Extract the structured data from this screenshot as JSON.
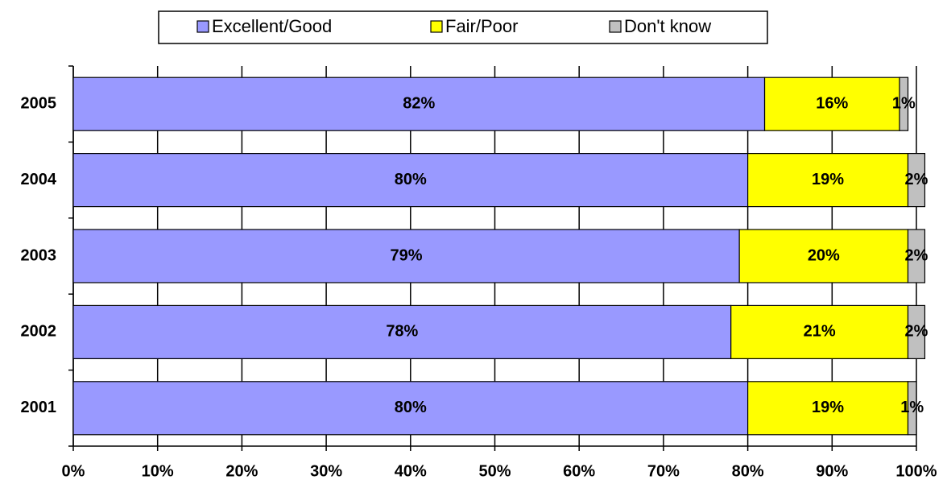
{
  "chart_data": {
    "type": "stacked_bar_horizontal",
    "categories": [
      "2005",
      "2004",
      "2003",
      "2002",
      "2001"
    ],
    "series": [
      {
        "name": "Excellent/Good",
        "color": "#9999ff",
        "values": [
          82,
          80,
          79,
          78,
          80
        ],
        "value_labels": [
          "82%",
          "80%",
          "79%",
          "78%",
          "80%"
        ]
      },
      {
        "name": "Fair/Poor",
        "color": "#ffff00",
        "values": [
          16,
          19,
          20,
          21,
          19
        ],
        "value_labels": [
          "16%",
          "19%",
          "20%",
          "21%",
          "19%"
        ]
      },
      {
        "name": "Don't know",
        "color": "#c0c0c0",
        "values": [
          1,
          2,
          2,
          2,
          1
        ],
        "value_labels": [
          "1%",
          "2%",
          "2%",
          "2%",
          "1%"
        ]
      }
    ],
    "xlim": [
      0,
      100
    ],
    "xticks": [
      {
        "value": 0,
        "label": "0%"
      },
      {
        "value": 10,
        "label": "10%"
      },
      {
        "value": 20,
        "label": "20%"
      },
      {
        "value": 30,
        "label": "30%"
      },
      {
        "value": 40,
        "label": "40%"
      },
      {
        "value": 50,
        "label": "50%"
      },
      {
        "value": 60,
        "label": "60%"
      },
      {
        "value": 70,
        "label": "70%"
      },
      {
        "value": 80,
        "label": "80%"
      },
      {
        "value": 90,
        "label": "90%"
      },
      {
        "value": 100,
        "label": "100%"
      }
    ],
    "grid": true,
    "legend": "top"
  }
}
